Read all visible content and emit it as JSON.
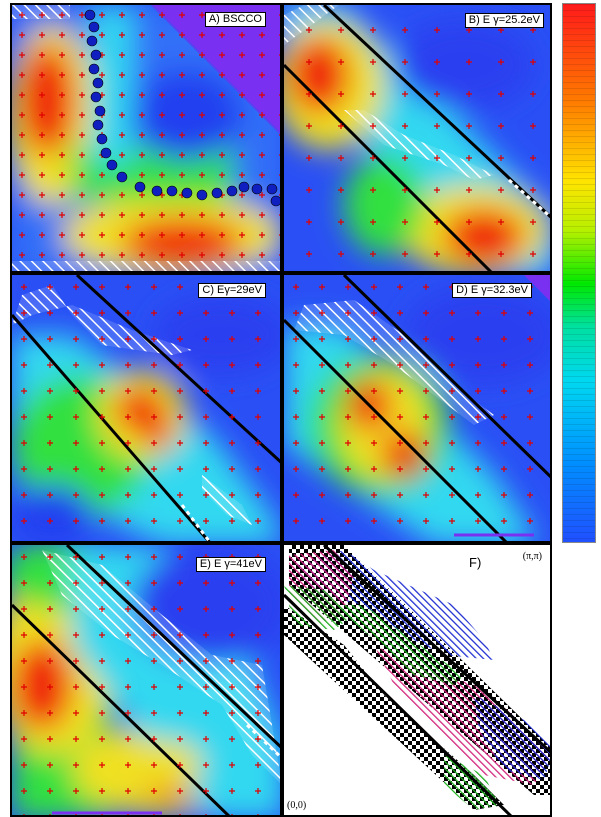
{
  "panels": {
    "a": {
      "label": "A) BSCCO"
    },
    "b": {
      "label": "B) E γ=25.2eV"
    },
    "c": {
      "label": "C) Eγ=29eV"
    },
    "d": {
      "label": "D) E γ=32.3eV"
    },
    "e": {
      "label": "E) E γ=41eV"
    },
    "f": {
      "label": "F)",
      "corner_top_right": "(π,π)",
      "corner_bottom_left": "(0,0)"
    }
  },
  "colors": {
    "background_blue": "#2a50f5",
    "hot_red": "#f02010",
    "mid_yellow": "#f0e020",
    "mid_green": "#20d840",
    "cyan": "#30d8f0",
    "violet": "#7a30f0",
    "marker_red": "#e00000",
    "dot_blue": "#1020c0",
    "f_magenta": "#d0207a",
    "f_blue": "#1a2ad0",
    "f_green": "#20b020"
  },
  "colorbar": {
    "icon": "color-scale-bar"
  }
}
